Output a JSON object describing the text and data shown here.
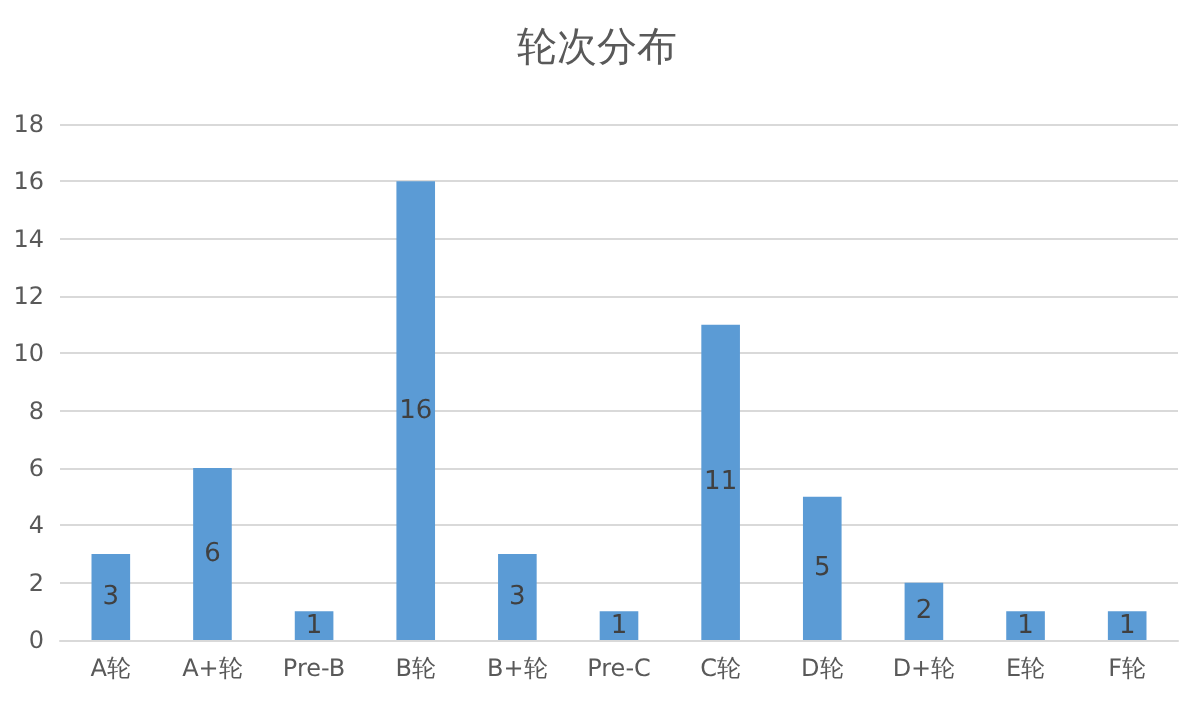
{
  "chart_data": {
    "type": "bar",
    "title": "轮次分布",
    "categories": [
      "A轮",
      "A+轮",
      "Pre-B",
      "B轮",
      "B+轮",
      "Pre-C",
      "C轮",
      "D轮",
      "D+轮",
      "E轮",
      "F轮"
    ],
    "values": [
      3,
      6,
      1,
      16,
      3,
      1,
      11,
      5,
      2,
      1,
      1
    ],
    "color": "#5b9bd5",
    "ylim": [
      0,
      18
    ],
    "yticks": [
      0,
      2,
      4,
      6,
      8,
      10,
      12,
      14,
      16,
      18
    ],
    "grid": "y",
    "data_labels": true
  }
}
